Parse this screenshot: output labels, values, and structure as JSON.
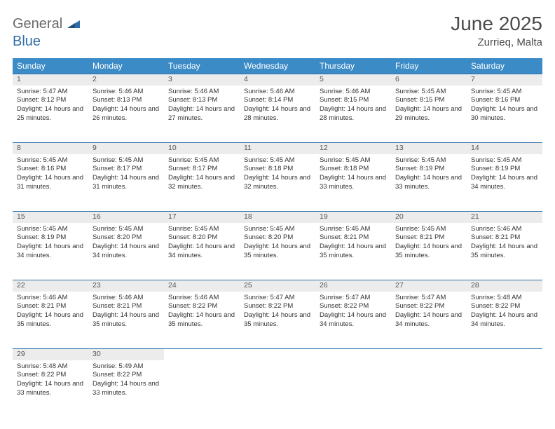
{
  "brand": {
    "part1": "General",
    "part2": "Blue"
  },
  "title": "June 2025",
  "location": "Zurrieq, Malta",
  "colors": {
    "header_bg": "#3b8bc7",
    "rule": "#2f6fa8",
    "daynum_bg": "#ececec",
    "text": "#333333",
    "title_color": "#4a4a4a"
  },
  "weekdays": [
    "Sunday",
    "Monday",
    "Tuesday",
    "Wednesday",
    "Thursday",
    "Friday",
    "Saturday"
  ],
  "weeks": [
    [
      {
        "n": "1",
        "sr": "5:47 AM",
        "ss": "8:12 PM",
        "dl": "14 hours and 25 minutes."
      },
      {
        "n": "2",
        "sr": "5:46 AM",
        "ss": "8:13 PM",
        "dl": "14 hours and 26 minutes."
      },
      {
        "n": "3",
        "sr": "5:46 AM",
        "ss": "8:13 PM",
        "dl": "14 hours and 27 minutes."
      },
      {
        "n": "4",
        "sr": "5:46 AM",
        "ss": "8:14 PM",
        "dl": "14 hours and 28 minutes."
      },
      {
        "n": "5",
        "sr": "5:46 AM",
        "ss": "8:15 PM",
        "dl": "14 hours and 28 minutes."
      },
      {
        "n": "6",
        "sr": "5:45 AM",
        "ss": "8:15 PM",
        "dl": "14 hours and 29 minutes."
      },
      {
        "n": "7",
        "sr": "5:45 AM",
        "ss": "8:16 PM",
        "dl": "14 hours and 30 minutes."
      }
    ],
    [
      {
        "n": "8",
        "sr": "5:45 AM",
        "ss": "8:16 PM",
        "dl": "14 hours and 31 minutes."
      },
      {
        "n": "9",
        "sr": "5:45 AM",
        "ss": "8:17 PM",
        "dl": "14 hours and 31 minutes."
      },
      {
        "n": "10",
        "sr": "5:45 AM",
        "ss": "8:17 PM",
        "dl": "14 hours and 32 minutes."
      },
      {
        "n": "11",
        "sr": "5:45 AM",
        "ss": "8:18 PM",
        "dl": "14 hours and 32 minutes."
      },
      {
        "n": "12",
        "sr": "5:45 AM",
        "ss": "8:18 PM",
        "dl": "14 hours and 33 minutes."
      },
      {
        "n": "13",
        "sr": "5:45 AM",
        "ss": "8:19 PM",
        "dl": "14 hours and 33 minutes."
      },
      {
        "n": "14",
        "sr": "5:45 AM",
        "ss": "8:19 PM",
        "dl": "14 hours and 34 minutes."
      }
    ],
    [
      {
        "n": "15",
        "sr": "5:45 AM",
        "ss": "8:19 PM",
        "dl": "14 hours and 34 minutes."
      },
      {
        "n": "16",
        "sr": "5:45 AM",
        "ss": "8:20 PM",
        "dl": "14 hours and 34 minutes."
      },
      {
        "n": "17",
        "sr": "5:45 AM",
        "ss": "8:20 PM",
        "dl": "14 hours and 34 minutes."
      },
      {
        "n": "18",
        "sr": "5:45 AM",
        "ss": "8:20 PM",
        "dl": "14 hours and 35 minutes."
      },
      {
        "n": "19",
        "sr": "5:45 AM",
        "ss": "8:21 PM",
        "dl": "14 hours and 35 minutes."
      },
      {
        "n": "20",
        "sr": "5:45 AM",
        "ss": "8:21 PM",
        "dl": "14 hours and 35 minutes."
      },
      {
        "n": "21",
        "sr": "5:46 AM",
        "ss": "8:21 PM",
        "dl": "14 hours and 35 minutes."
      }
    ],
    [
      {
        "n": "22",
        "sr": "5:46 AM",
        "ss": "8:21 PM",
        "dl": "14 hours and 35 minutes."
      },
      {
        "n": "23",
        "sr": "5:46 AM",
        "ss": "8:21 PM",
        "dl": "14 hours and 35 minutes."
      },
      {
        "n": "24",
        "sr": "5:46 AM",
        "ss": "8:22 PM",
        "dl": "14 hours and 35 minutes."
      },
      {
        "n": "25",
        "sr": "5:47 AM",
        "ss": "8:22 PM",
        "dl": "14 hours and 35 minutes."
      },
      {
        "n": "26",
        "sr": "5:47 AM",
        "ss": "8:22 PM",
        "dl": "14 hours and 34 minutes."
      },
      {
        "n": "27",
        "sr": "5:47 AM",
        "ss": "8:22 PM",
        "dl": "14 hours and 34 minutes."
      },
      {
        "n": "28",
        "sr": "5:48 AM",
        "ss": "8:22 PM",
        "dl": "14 hours and 34 minutes."
      }
    ],
    [
      {
        "n": "29",
        "sr": "5:48 AM",
        "ss": "8:22 PM",
        "dl": "14 hours and 33 minutes."
      },
      {
        "n": "30",
        "sr": "5:49 AM",
        "ss": "8:22 PM",
        "dl": "14 hours and 33 minutes."
      },
      null,
      null,
      null,
      null,
      null
    ]
  ],
  "labels": {
    "sunrise": "Sunrise: ",
    "sunset": "Sunset: ",
    "daylight": "Daylight: "
  }
}
